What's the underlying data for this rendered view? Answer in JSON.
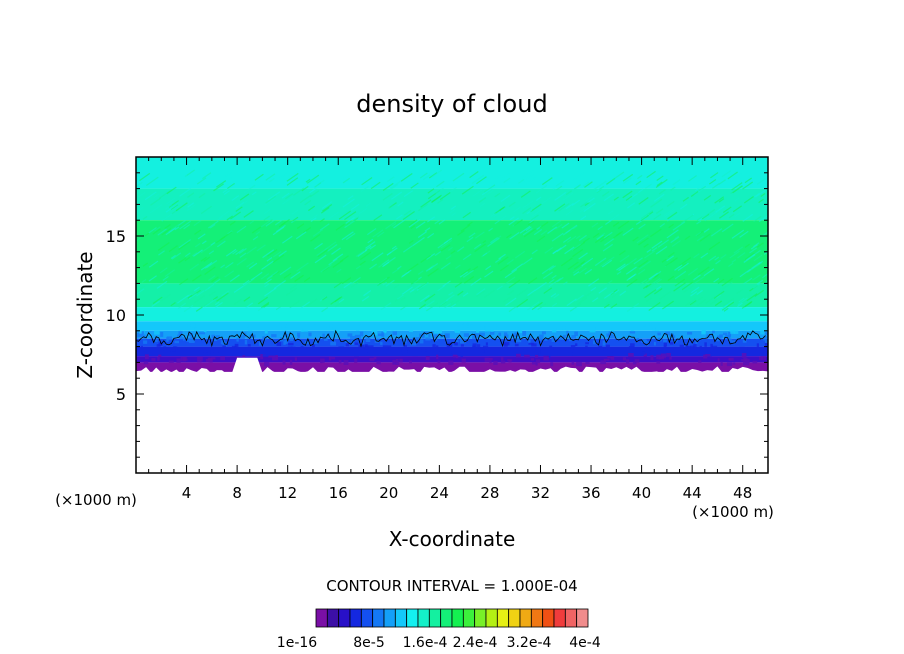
{
  "chart_data": {
    "type": "heatmap",
    "title": "density of cloud",
    "xlabel": "X-coordinate",
    "ylabel": "Z-coordinate",
    "x_unit": "(×1000 m)",
    "x_unit_right": "(×1000 m)",
    "xlim": [
      0,
      50
    ],
    "ylim": [
      0,
      20
    ],
    "x_ticks": [
      4,
      8,
      12,
      16,
      20,
      24,
      28,
      32,
      36,
      40,
      44,
      48
    ],
    "y_ticks": [
      5,
      10,
      15
    ],
    "contour_interval_label": "CONTOUR INTERVAL = 1.000E-04",
    "colorbar_labels": [
      "1e-16",
      "8e-5",
      "1.6e-4",
      "2.4e-4",
      "3.2e-4",
      "4e-4"
    ],
    "colorbar_colors": [
      "#7a0fa6",
      "#3c0fa6",
      "#2810c8",
      "#1428e0",
      "#1450f0",
      "#1478f5",
      "#14a0f8",
      "#14c8fa",
      "#14f0f0",
      "#14f0c8",
      "#14f0a0",
      "#14f078",
      "#14f050",
      "#3cf03c",
      "#78f028",
      "#b4f014",
      "#e6f014",
      "#f0d214",
      "#f0aa14",
      "#f07814",
      "#f05014",
      "#f03c3c",
      "#f06464",
      "#f08c8c"
    ],
    "cloud_layer": {
      "base_z_approx": 6.5,
      "top_z_approx": 19.5,
      "contour_line_z_approx": 8.5,
      "gap_x_range": [
        8,
        10
      ],
      "gap_base_z": 7.3
    },
    "bands": [
      {
        "z0": 18.0,
        "z1": 20.0,
        "color": "#14f0e0"
      },
      {
        "z0": 16.0,
        "z1": 18.0,
        "color": "#14f0c0"
      },
      {
        "z0": 12.0,
        "z1": 16.0,
        "color": "#14f078"
      },
      {
        "z0": 10.5,
        "z1": 12.0,
        "color": "#14f0a8"
      },
      {
        "z0": 9.6,
        "z1": 10.5,
        "color": "#14f0e0"
      },
      {
        "z0": 9.0,
        "z1": 9.6,
        "color": "#14c8fa"
      },
      {
        "z0": 8.5,
        "z1": 9.0,
        "color": "#14a0f8"
      },
      {
        "z0": 8.0,
        "z1": 8.5,
        "color": "#1450f0"
      },
      {
        "z0": 7.4,
        "z1": 8.0,
        "color": "#1428e0"
      },
      {
        "z0": 7.0,
        "z1": 7.4,
        "color": "#3c0fc8"
      },
      {
        "z0": 6.4,
        "z1": 7.0,
        "color": "#7a0fa6"
      }
    ]
  }
}
